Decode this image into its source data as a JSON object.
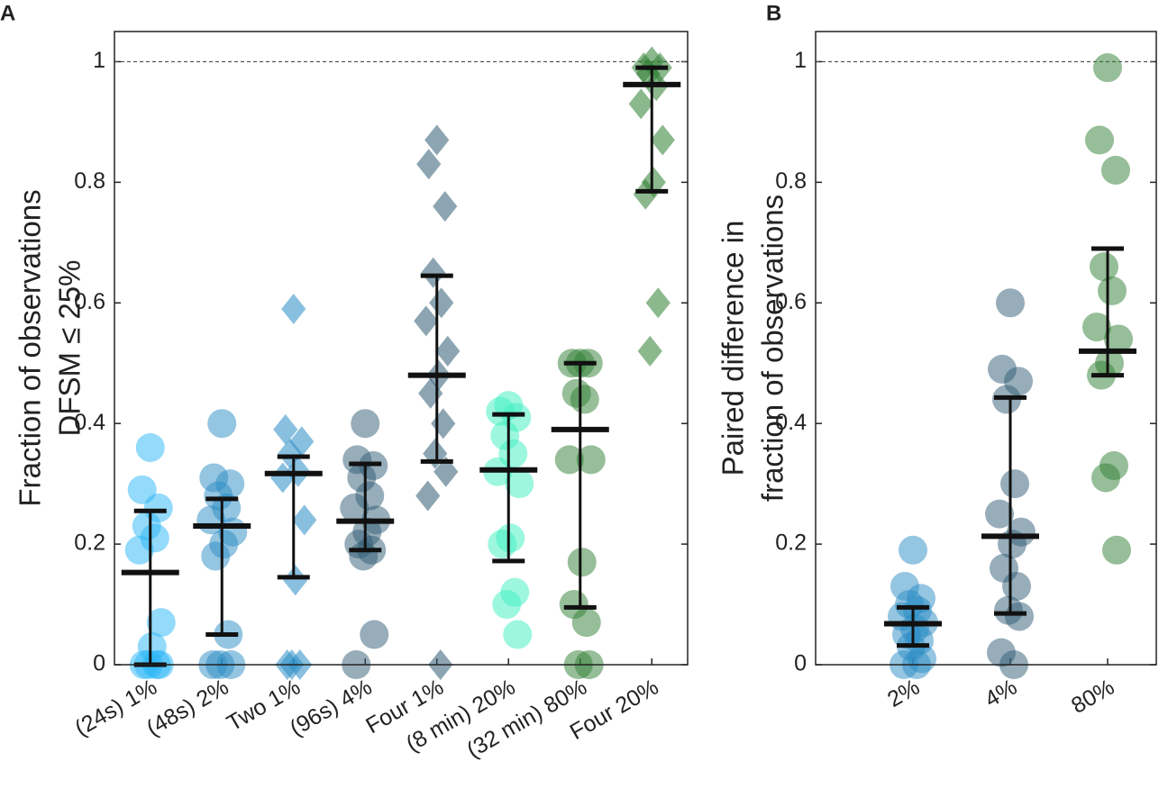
{
  "chart_data": [
    {
      "type": "strip",
      "panel": "A",
      "ylabel": [
        "Fraction of observations",
        "DFSM ≤ 25%"
      ],
      "ylim": [
        0,
        1.05
      ],
      "yticks": [
        0,
        0.2,
        0.4,
        0.6,
        0.8,
        1
      ],
      "refline": 1,
      "groups": [
        {
          "category": "(24s) 1%",
          "marker": "circle",
          "color": "#29b6f6",
          "values": [
            0.36,
            0.29,
            0.26,
            0.23,
            0.21,
            0.19,
            0.07,
            0.03,
            0,
            0,
            0,
            0
          ],
          "median": 0.153,
          "q1": 0,
          "q3": 0.255
        },
        {
          "category": "(48s) 2%",
          "marker": "circle",
          "color": "#2a8cc4",
          "values": [
            0.4,
            0.31,
            0.3,
            0.28,
            0.26,
            0.24,
            0.22,
            0.2,
            0.18,
            0.05,
            0,
            0,
            0
          ],
          "median": 0.23,
          "q1": 0.05,
          "q3": 0.275
        },
        {
          "category": "Two 1%",
          "marker": "diamond",
          "color": "#2a8cc4",
          "values": [
            0.59,
            0.39,
            0.37,
            0.35,
            0.32,
            0.31,
            0.24,
            0.14,
            0,
            0,
            0
          ],
          "median": 0.317,
          "q1": 0.145,
          "q3": 0.345
        },
        {
          "category": "(96s) 4%",
          "marker": "circle",
          "color": "#2f5b73",
          "values": [
            0.4,
            0.34,
            0.33,
            0.31,
            0.28,
            0.26,
            0.24,
            0.22,
            0.2,
            0.19,
            0.18,
            0.05,
            0
          ],
          "median": 0.238,
          "q1": 0.19,
          "q3": 0.333
        },
        {
          "category": "Four 1%",
          "marker": "diamond",
          "color": "#2f5b73",
          "values": [
            0.87,
            0.83,
            0.76,
            0.65,
            0.6,
            0.57,
            0.52,
            0.48,
            0.45,
            0.4,
            0.35,
            0.32,
            0.28,
            0
          ],
          "median": 0.48,
          "q1": 0.337,
          "q3": 0.645
        },
        {
          "category": "(8 min) 20%",
          "marker": "circle",
          "color": "#3cf0c0",
          "values": [
            0.43,
            0.42,
            0.41,
            0.38,
            0.35,
            0.32,
            0.3,
            0.21,
            0.2,
            0.12,
            0.1,
            0.05
          ],
          "median": 0.323,
          "q1": 0.172,
          "q3": 0.415
        },
        {
          "category": "(32 min) 80%",
          "marker": "circle",
          "color": "#2e7d32",
          "values": [
            0.5,
            0.5,
            0.5,
            0.45,
            0.44,
            0.34,
            0.34,
            0.17,
            0.1,
            0.07,
            0,
            0
          ],
          "median": 0.39,
          "q1": 0.095,
          "q3": 0.5
        },
        {
          "category": "Four 20%",
          "marker": "diamond",
          "color": "#2e7d32",
          "values": [
            1,
            0.99,
            0.99,
            0.98,
            0.96,
            0.93,
            0.87,
            0.8,
            0.78,
            0.6,
            0.52
          ],
          "median": 0.962,
          "q1": 0.785,
          "q3": 0.99
        }
      ]
    },
    {
      "type": "strip",
      "panel": "B",
      "ylabel": [
        "Paired difference in",
        "fraction of observations"
      ],
      "ylim": [
        0,
        1.05
      ],
      "yticks": [
        0,
        0.2,
        0.4,
        0.6,
        0.8,
        1
      ],
      "refline": 1,
      "groups": [
        {
          "category": "2%",
          "marker": "circle",
          "color": "#2a8cc4",
          "values": [
            0.19,
            0.13,
            0.11,
            0.1,
            0.09,
            0.08,
            0.07,
            0.06,
            0.05,
            0.04,
            0.03,
            0.01,
            0,
            0
          ],
          "median": 0.068,
          "q1": 0.032,
          "q3": 0.095
        },
        {
          "category": "4%",
          "marker": "circle",
          "color": "#2f5b73",
          "values": [
            0.6,
            0.49,
            0.47,
            0.44,
            0.3,
            0.25,
            0.22,
            0.2,
            0.16,
            0.13,
            0.09,
            0.08,
            0.02,
            0
          ],
          "median": 0.213,
          "q1": 0.085,
          "q3": 0.443
        },
        {
          "category": "80%",
          "marker": "circle",
          "color": "#2e7d32",
          "values": [
            0.99,
            0.87,
            0.82,
            0.66,
            0.62,
            0.56,
            0.54,
            0.5,
            0.48,
            0.33,
            0.31,
            0.19
          ],
          "median": 0.52,
          "q1": 0.48,
          "q3": 0.69
        }
      ]
    }
  ]
}
